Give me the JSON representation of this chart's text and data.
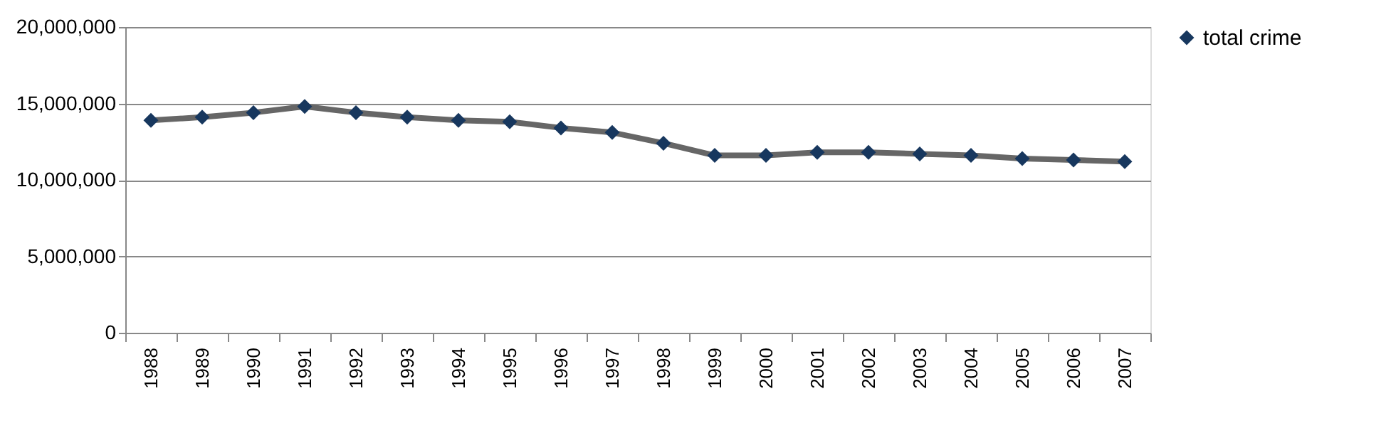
{
  "chart_data": {
    "type": "line",
    "categories": [
      "1988",
      "1989",
      "1990",
      "1991",
      "1992",
      "1993",
      "1994",
      "1995",
      "1996",
      "1997",
      "1998",
      "1999",
      "2000",
      "2001",
      "2002",
      "2003",
      "2004",
      "2005",
      "2006",
      "2007"
    ],
    "series": [
      {
        "name": "total crime",
        "color": "#17375e",
        "values": [
          13900000,
          14100000,
          14400000,
          14800000,
          14400000,
          14100000,
          13900000,
          13800000,
          13400000,
          13100000,
          12400000,
          11600000,
          11600000,
          11800000,
          11800000,
          11700000,
          11600000,
          11400000,
          11300000,
          11200000
        ]
      }
    ],
    "ylim": [
      0,
      20000000
    ],
    "yticks": [
      0,
      {
        "value": 5000000,
        "label": "5,000,000"
      },
      {
        "value": 10000000,
        "label": "10,000,000"
      },
      {
        "value": 15000000,
        "label": "15,000,000"
      },
      {
        "value": 20000000,
        "label": "20,000,000"
      }
    ],
    "grid": "y",
    "legend": "right",
    "marker": "diamond",
    "line_style": "solid"
  }
}
